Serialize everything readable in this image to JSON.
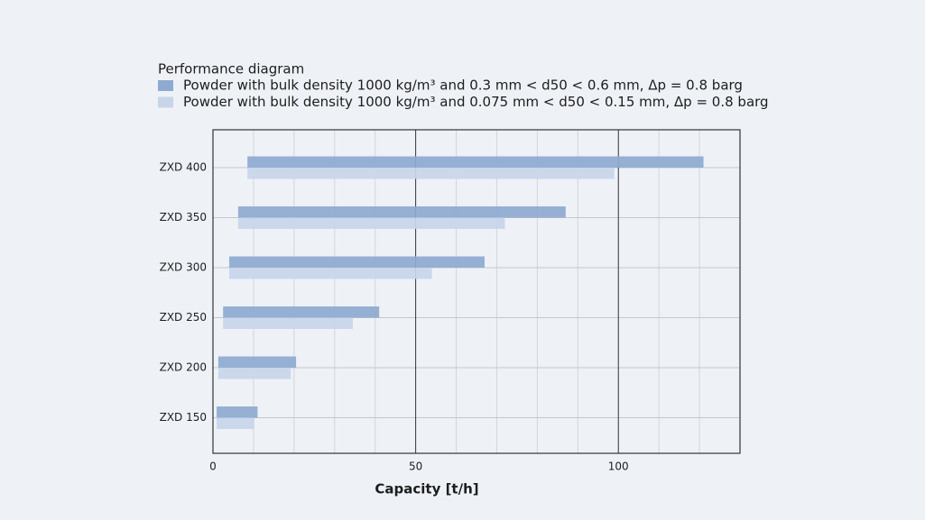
{
  "chart_data": {
    "type": "range-bar",
    "orientation": "horizontal",
    "title": "Performance diagram",
    "xlabel": "Capacity [t/h]",
    "categories": [
      "ZXD 400",
      "ZXD 350",
      "ZXD 300",
      "ZXD 250",
      "ZXD 200",
      "ZXD 150"
    ],
    "series": [
      {
        "name": "Powder with bulk density 1000 kg/m³ and 0.3 mm < d50 < 0.6 mm, Δp = 0.8 barg",
        "color": "#8eaad0",
        "values": [
          [
            8.5,
            121
          ],
          [
            6.2,
            87
          ],
          [
            4,
            67
          ],
          [
            2.5,
            41
          ],
          [
            1.3,
            20.5
          ],
          [
            0.9,
            11
          ]
        ]
      },
      {
        "name": "Powder with bulk density 1000 kg/m³ and 0.075 mm < d50 < 0.15 mm, Δp = 0.8 barg",
        "color": "#c8d5e9",
        "values": [
          [
            8.5,
            99
          ],
          [
            6.2,
            72
          ],
          [
            4,
            54
          ],
          [
            2.5,
            34.5
          ],
          [
            1.3,
            19.2
          ],
          [
            0.9,
            10.2
          ]
        ]
      }
    ],
    "xlim": [
      0,
      130
    ],
    "xticks": [
      0,
      50,
      100
    ],
    "xminorticks": [
      10,
      20,
      30,
      40,
      60,
      70,
      80,
      90,
      110,
      120
    ],
    "grid": true
  }
}
